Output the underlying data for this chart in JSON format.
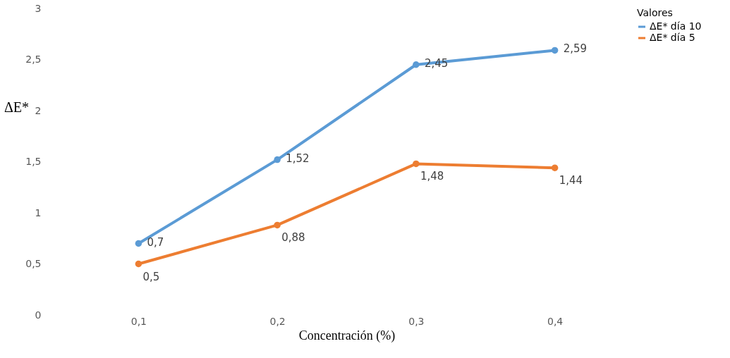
{
  "chart_data": {
    "type": "line",
    "xlabel": "Concentración (%)",
    "ylabel": "ΔE*",
    "legend_title": "Valores",
    "categories": [
      "0,1",
      "0,2",
      "0,3",
      "0,4"
    ],
    "series": [
      {
        "name": "ΔE* día 10",
        "color": "#5b9bd5",
        "values": [
          0.7,
          1.52,
          2.45,
          2.59
        ],
        "value_labels": [
          "0,7",
          "1,52",
          "2,45",
          "2,59"
        ]
      },
      {
        "name": "ΔE* día 5",
        "color": "#ed7d31",
        "values": [
          0.5,
          0.88,
          1.48,
          1.44
        ],
        "value_labels": [
          "0,5",
          "0,88",
          "1,48",
          "1,44"
        ]
      }
    ],
    "ylim": [
      0,
      3
    ],
    "yticks": [
      0,
      {
        "value": 0.5,
        "label": "0,5"
      },
      1,
      {
        "value": 1.5,
        "label": "1,5"
      },
      2,
      {
        "value": 2.5,
        "label": "2,5"
      },
      3
    ],
    "grid": false,
    "legend": "right",
    "marker": "circle",
    "line_style": "solid"
  }
}
